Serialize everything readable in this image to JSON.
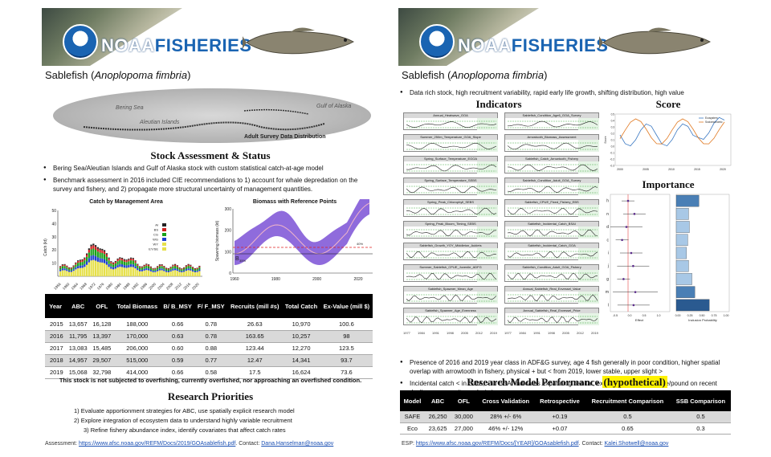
{
  "brand": {
    "prefix": "NOAA",
    "suffix": "FISHERIES",
    "logo_text": "NOAA"
  },
  "species": {
    "common": "Sablefish",
    "scientific": "Anoplopoma fimbria"
  },
  "left": {
    "map": {
      "labels": [
        "Bering Sea",
        "Gulf of Alaska",
        "Aleutian Islands"
      ],
      "caption": "Adult Survey Data Distribution"
    },
    "stock_heading": "Stock Assessment & Status",
    "bullets": [
      "Bering Sea/Aleutian Islands and Gulf of Alaska stock with custom statistical catch-at-age model",
      "Benchmark assessment in 2016 included CIE recommendations to 1) account for whale depredation on the survey and fishery, and 2) propagate more structural uncertainty of management quantities."
    ],
    "catch_chart": {
      "title": "Catch by Management Area",
      "ylabel": "Catch (kt)",
      "yticks": [
        "10",
        "20",
        "30",
        "40",
        "50"
      ],
      "xticks": [
        "1956",
        "1960",
        "1964",
        "1968",
        "1972",
        "1976",
        "1980",
        "1984",
        "1988",
        "1992",
        "1996",
        "2000",
        "2004",
        "2008",
        "2012",
        "2016",
        "2020"
      ],
      "legend": [
        "AI",
        "BS",
        "CG",
        "WG",
        "WY",
        "EY/SE"
      ]
    },
    "biomass_chart": {
      "title": "Biomass with Reference Points",
      "ylabel": "Spawning biomass (kt)",
      "yticks": [
        "0",
        "100",
        "200",
        "300"
      ],
      "xticks": [
        "1960",
        "1980",
        "2000",
        "2020"
      ],
      "annotations": [
        "B",
        "35%",
        "40%"
      ]
    },
    "table": {
      "headers": [
        "Year",
        "ABC",
        "OFL",
        "Total Biomass",
        "B/ B_MSY",
        "F/ F_MSY",
        "Recruits (mill #s)",
        "Total Catch",
        "Ex-Value (mill $)"
      ],
      "rows": [
        [
          "2015",
          "13,657",
          "16,128",
          "188,000",
          "0.66",
          "0.78",
          "26.63",
          "10,970",
          "100.6"
        ],
        [
          "2016",
          "11,795",
          "13,397",
          "170,000",
          "0.63",
          "0.78",
          "163.65",
          "10,257",
          "98"
        ],
        [
          "2017",
          "13,083",
          "15,485",
          "206,000",
          "0.60",
          "0.88",
          "123.44",
          "12,270",
          "123.5"
        ],
        [
          "2018",
          "14,957",
          "29,507",
          "515,000",
          "0.59",
          "0.77",
          "12.47",
          "14,341",
          "93.7"
        ],
        [
          "2019",
          "15,068",
          "32,798",
          "414,000",
          "0.66",
          "0.58",
          "17.5",
          "16,624",
          "73.6"
        ]
      ]
    },
    "statement": "This stock is not subjected to overfishing, currently overfished, nor approaching an overfished condition.",
    "priorities_heading": "Research Priorities",
    "priorities": [
      "1)   Evaluate apportionment  strategies for ABC, use spatially explicit research model",
      "2)   Explore integration of ecosystem data to understand highly variable recruitment",
      "3)   Refine fishery abundance index, identify covariates that affect catch rates"
    ],
    "footer": {
      "prefix": "Assessment: ",
      "url": "https://www.afsc.noaa.gov/REFM/Docs/2019/GOAsablefish.pdf",
      "contact_label": ". Contact: ",
      "email": "Dana.Hanselman@noaa.gov"
    }
  },
  "right": {
    "bullet": "Data rich stock, high recruitment  variability, rapid early life growth,  shifting distribution, high value",
    "indicators_heading": "Indicators",
    "score_heading": "Score",
    "importance_heading": "Importance",
    "indicators": [
      "Annual_Heatwave_GOA",
      "Sablefish_Condition_Age6_GOA_Survey",
      "Summer_250m_Temperature_GOA_Slope",
      "Arrowtooth_Biomass_Assessment",
      "Spring_Surface_Temperature_EGOA",
      "Sablefish_Catch_Arrowtooth_Fishery",
      "Spring_Surface_Temperature_SEBS",
      "Sablefish_Condition_Adult_GOA_Survey",
      "Spring_Peak_Chlorophyll_SEBS",
      "Sablefish_CPUE_Fixed_Fishery_EBS",
      "Spring_Peak_Bloom_Timing_SEBS",
      "Sablefish_Incidental_Catch_BSAI",
      "Sablefish_Growth_YOY_Middleton_Auklets",
      "Sablefish_Incidental_Catch_GOA",
      "Summer_Sablefish_CPUE_Juvenile_ADFG",
      "Sablefish_Condition_Adult_GOA_Fishery",
      "Sablefish_Spawner_Mean_Age",
      "Annual_Sablefish_Real_Exvessel_Value",
      "Sablefish_Spawner_Age_Evenness",
      "Annual_Sablefish_Real_Exvessel_Price"
    ],
    "indicator_xticks": [
      "1977",
      "1984",
      "1991",
      "1998",
      "2005",
      "2012",
      "2019"
    ],
    "score_chart": {
      "ylabel": "Score",
      "yticks": [
        "-0.3",
        "-0.2",
        "-0.1",
        "0.0",
        "0.1",
        "0.2",
        "0.3",
        "0.4",
        "0.5"
      ],
      "xticks": [
        "2000",
        "2005",
        "2010",
        "2015",
        "2020"
      ],
      "legend": [
        "Ecosystem",
        "Socioeconomic"
      ]
    },
    "importance_chart": {
      "letters": [
        "h",
        "n",
        "d",
        "c",
        "i",
        "j",
        "g",
        "m",
        "l"
      ],
      "effect_ticks": [
        "-0.5",
        "0.0",
        "0.5",
        "1.0"
      ],
      "effect_label": "Effect",
      "prob_ticks": [
        "0.00",
        "0.25",
        "0.50",
        "0.75",
        "1.00"
      ],
      "prob_label": "Inclusion Probability"
    },
    "bullets2": [
      "Presence of 2016 and 2019 year class in ADF&G survey, age 4 fish generally in poor condition, higher spatial overlap with arrowtooth  in fishery, physical + but < from 2019, lower stable, upper slight >",
      "Incidental catch < in GOA, > in BSAI indicates expanding habitat, ex-vessel value and price/pound on recent decline, community  analysis in progress"
    ],
    "model_heading": "Research Model Performance ",
    "model_heading_hl": "(hypothetical)",
    "model_table": {
      "headers": [
        "Model",
        "ABC",
        "OFL",
        "Cross Validation",
        "Retrospective",
        "Recruitment Comparison",
        "SSB Comparison"
      ],
      "rows": [
        [
          "SAFE",
          "26,250",
          "30,000",
          "28% +/- 6%",
          "+0.19",
          "0.5",
          "0.5"
        ],
        [
          "Eco",
          "23,625",
          "27,000",
          "46% +/- 12%",
          "+0.07",
          "0.65",
          "0.3"
        ]
      ]
    },
    "footer": {
      "prefix": "ESP: ",
      "url": "https://www.afsc.noaa.gov/REFM/Docs/[YEAR]/GOAsablefish.pdf",
      "contact_label": ". Contact: ",
      "email": "Kalei.Shotwell@noaa.gov"
    }
  },
  "colors": {
    "noaa_blue": "#1a64b2",
    "table_header": "#000000",
    "row_shade": "#d9d9d9",
    "biomass_band": "#6a3ad0",
    "ref_line": "#e02020"
  }
}
